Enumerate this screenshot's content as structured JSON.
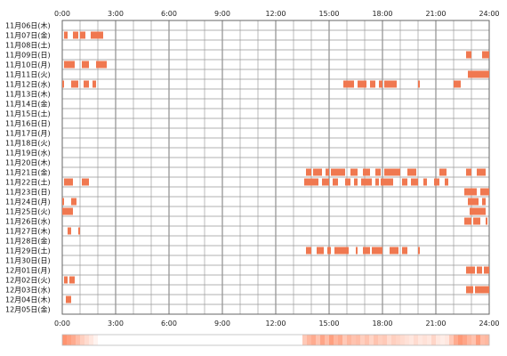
{
  "chart_data": {
    "type": "heatmap",
    "x_ticks": [
      "0:00",
      "3:00",
      "6:00",
      "9:00",
      "12:00",
      "15:00",
      "18:00",
      "21:00",
      "24:00"
    ],
    "x_range_hours": [
      0,
      24
    ],
    "rows": [
      {
        "label": "11月06日(木)",
        "spans": []
      },
      {
        "label": "11月07日(金)",
        "spans": [
          [
            0.1,
            0.3
          ],
          [
            0.6,
            0.9
          ],
          [
            1.0,
            1.3
          ],
          [
            1.6,
            2.3
          ]
        ]
      },
      {
        "label": "11月08日(土)",
        "spans": []
      },
      {
        "label": "11月09日(日)",
        "spans": [
          [
            22.7,
            23.0
          ],
          [
            23.6,
            24.0
          ]
        ]
      },
      {
        "label": "11月10日(月)",
        "spans": [
          [
            0.1,
            0.7
          ],
          [
            1.1,
            1.5
          ],
          [
            1.9,
            2.5
          ]
        ]
      },
      {
        "label": "11月11日(火)",
        "spans": [
          [
            22.8,
            24.0
          ]
        ]
      },
      {
        "label": "11月12日(水)",
        "spans": [
          [
            0.0,
            0.1
          ],
          [
            0.5,
            0.9
          ],
          [
            1.2,
            1.5
          ],
          [
            1.7,
            1.9
          ],
          [
            15.8,
            16.4
          ],
          [
            16.6,
            17.1
          ],
          [
            17.3,
            17.6
          ],
          [
            17.8,
            18.0
          ],
          [
            18.1,
            18.8
          ],
          [
            20.0,
            20.1
          ],
          [
            22.0,
            22.4
          ]
        ]
      },
      {
        "label": "11月13日(木)",
        "spans": []
      },
      {
        "label": "11月14日(金)",
        "spans": []
      },
      {
        "label": "11月15日(土)",
        "spans": []
      },
      {
        "label": "11月16日(日)",
        "spans": []
      },
      {
        "label": "11月17日(月)",
        "spans": []
      },
      {
        "label": "11月18日(火)",
        "spans": []
      },
      {
        "label": "11月19日(水)",
        "spans": []
      },
      {
        "label": "11月20日(木)",
        "spans": []
      },
      {
        "label": "11月21日(金)",
        "spans": [
          [
            13.7,
            14.0
          ],
          [
            14.1,
            14.6
          ],
          [
            14.8,
            15.0
          ],
          [
            15.1,
            15.9
          ],
          [
            16.2,
            16.6
          ],
          [
            16.9,
            17.3
          ],
          [
            17.6,
            17.9
          ],
          [
            18.1,
            19.0
          ],
          [
            19.4,
            19.9
          ],
          [
            21.2,
            21.6
          ],
          [
            22.7,
            23.0
          ],
          [
            23.3,
            23.8
          ]
        ]
      },
      {
        "label": "11月22日(土)",
        "spans": [
          [
            0.1,
            0.6
          ],
          [
            1.1,
            1.5
          ],
          [
            13.6,
            14.4
          ],
          [
            14.6,
            15.0
          ],
          [
            15.2,
            15.5
          ],
          [
            15.9,
            16.2
          ],
          [
            16.4,
            16.6
          ],
          [
            16.8,
            17.4
          ],
          [
            17.6,
            17.8
          ],
          [
            17.9,
            18.6
          ],
          [
            19.1,
            19.4
          ],
          [
            19.6,
            20.0
          ],
          [
            20.3,
            20.5
          ],
          [
            20.9,
            21.2
          ],
          [
            21.5,
            21.7
          ]
        ]
      },
      {
        "label": "11月23日(日)",
        "spans": [
          [
            22.6,
            23.3
          ],
          [
            23.5,
            24.0
          ]
        ]
      },
      {
        "label": "11月24日(月)",
        "spans": [
          [
            0.0,
            0.1
          ],
          [
            0.5,
            0.8
          ],
          [
            22.8,
            23.4
          ],
          [
            23.6,
            23.8
          ]
        ]
      },
      {
        "label": "11月25日(火)",
        "spans": [
          [
            0.0,
            0.6
          ],
          [
            22.9,
            23.8
          ]
        ]
      },
      {
        "label": "11月26日(水)",
        "spans": [
          [
            22.6,
            23.0
          ],
          [
            23.1,
            23.5
          ],
          [
            23.8,
            23.9
          ]
        ]
      },
      {
        "label": "11月27日(木)",
        "spans": [
          [
            0.3,
            0.5
          ],
          [
            0.9,
            1.0
          ]
        ]
      },
      {
        "label": "11月28日(金)",
        "spans": []
      },
      {
        "label": "11月29日(土)",
        "spans": [
          [
            13.7,
            14.0
          ],
          [
            14.3,
            14.7
          ],
          [
            14.9,
            15.1
          ],
          [
            15.3,
            16.1
          ],
          [
            16.5,
            16.6
          ],
          [
            16.9,
            17.3
          ],
          [
            17.4,
            18.0
          ],
          [
            18.4,
            18.9
          ],
          [
            19.1,
            19.4
          ],
          [
            20.0,
            20.1
          ]
        ]
      },
      {
        "label": "11月30日(日)",
        "spans": []
      },
      {
        "label": "12月01日(月)",
        "spans": [
          [
            22.7,
            23.2
          ],
          [
            23.3,
            23.6
          ],
          [
            23.7,
            24.0
          ]
        ]
      },
      {
        "label": "12月02日(火)",
        "spans": [
          [
            0.1,
            0.3
          ],
          [
            0.4,
            0.7
          ]
        ]
      },
      {
        "label": "12月03日(水)",
        "spans": [
          [
            22.7,
            23.1
          ],
          [
            23.2,
            24.0
          ]
        ]
      },
      {
        "label": "12月04日(木)",
        "spans": [
          [
            0.2,
            0.5
          ]
        ]
      },
      {
        "label": "12月05日(金)",
        "spans": []
      }
    ],
    "summary_density": [
      0.9,
      0.8,
      0.7,
      0.55,
      0.4,
      0.3,
      0.2,
      0.1,
      0,
      0,
      0,
      0,
      0,
      0,
      0,
      0,
      0,
      0,
      0,
      0,
      0,
      0,
      0,
      0,
      0,
      0,
      0,
      0,
      0,
      0,
      0,
      0,
      0,
      0,
      0,
      0,
      0,
      0,
      0,
      0,
      0,
      0,
      0,
      0,
      0,
      0,
      0,
      0,
      0,
      0,
      0,
      0,
      0,
      0,
      0.45,
      0.6,
      0.7,
      0.5,
      0.75,
      0.55,
      0.8,
      0.6,
      0.7,
      0.45,
      0.6,
      0.5,
      0.55,
      0.4,
      0.5,
      0.35,
      0.5,
      0.4,
      0.45,
      0.3,
      0.4,
      0.35,
      0.3,
      0.25,
      0.2,
      0.3,
      0.2,
      0.25,
      0.2,
      0.35,
      0.2,
      0.15,
      0.2,
      0.45,
      0.7,
      0.85,
      0.75,
      0.6,
      0.5,
      0.8,
      0.55,
      0.6
    ],
    "colors": {
      "bar": "#f07850",
      "bar_light": "#f7a078",
      "grid": "#999999",
      "border": "#666666"
    }
  }
}
